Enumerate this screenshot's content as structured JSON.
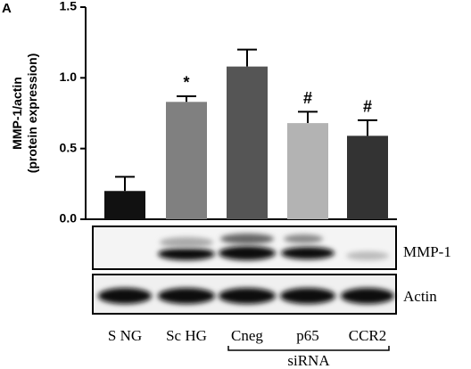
{
  "chart_data": {
    "type": "bar",
    "panel_label": "A",
    "y_label": [
      "MMP-1/actin",
      "(protein expression)"
    ],
    "categories": [
      "S NG",
      "Sc HG",
      "Cneg",
      "p65",
      "CCR2"
    ],
    "values": [
      0.2,
      0.83,
      1.08,
      0.68,
      0.59
    ],
    "errors": [
      0.1,
      0.04,
      0.12,
      0.08,
      0.11
    ],
    "colors": [
      "#111111",
      "#808080",
      "#555555",
      "#b3b3b3",
      "#333333"
    ],
    "annotations": [
      {
        "category": 1,
        "text": "*"
      },
      {
        "category": 3,
        "text": "#"
      },
      {
        "category": 4,
        "text": "#"
      }
    ],
    "ylim": [
      0,
      1.5
    ],
    "yticks": [
      {
        "value": 0,
        "label": "0.0"
      },
      {
        "value": 0.5,
        "label": "0.5"
      },
      {
        "value": 1,
        "label": "1.0"
      },
      {
        "value": 1.5,
        "label": "1.5"
      }
    ],
    "blot_rows": [
      "MMP-1",
      "Actin"
    ],
    "group_label": "siRNA"
  }
}
